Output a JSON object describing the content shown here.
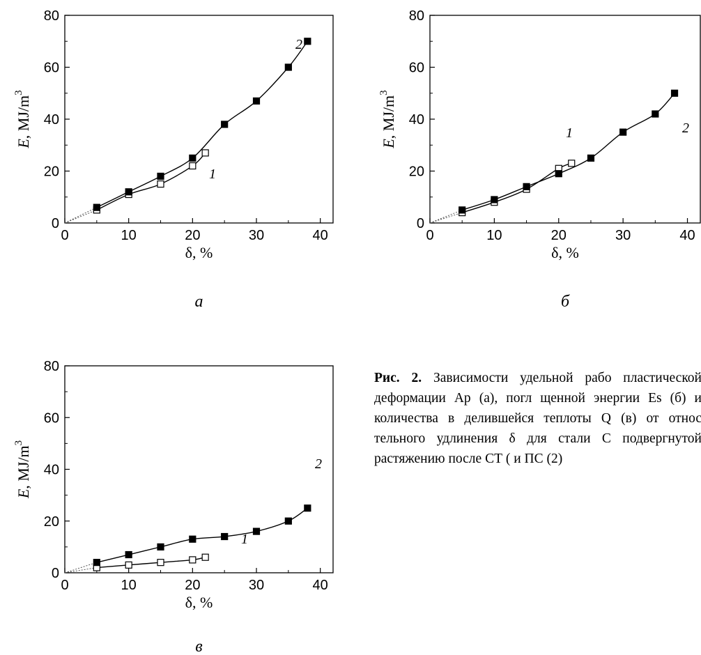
{
  "caption": {
    "label": "Рис. 2.",
    "text": "Зависимости удельной рабо пластической деформации Ap (а), погл щенной энергии Es (б) и количества в делившейся теплоты Q (в) от относ тельного удлинения δ для стали С подвергнутой растяжению после СТ ( и ПС (2)"
  },
  "chart_data": [
    {
      "type": "line",
      "panel": "a",
      "panel_label": "а",
      "xlabel": "δ, %",
      "ylabel": "E, MJ/m3",
      "xlim": [
        0,
        42
      ],
      "ylim": [
        0,
        80
      ],
      "xticks": [
        0,
        10,
        20,
        30,
        40
      ],
      "yticks": [
        0,
        20,
        40,
        60,
        80
      ],
      "series": [
        {
          "name": "1",
          "marker": "open-square",
          "x": [
            5,
            10,
            15,
            20,
            22
          ],
          "y": [
            5,
            11,
            15,
            22,
            27
          ]
        },
        {
          "name": "2",
          "marker": "filled-square",
          "x": [
            5,
            10,
            15,
            20,
            25,
            30,
            35,
            38
          ],
          "y": [
            6,
            12,
            18,
            25,
            38,
            47,
            60,
            70
          ]
        }
      ]
    },
    {
      "type": "line",
      "panel": "b",
      "panel_label": "б",
      "xlabel": "δ, %",
      "ylabel": "E, MJ/m3",
      "xlim": [
        0,
        42
      ],
      "ylim": [
        0,
        80
      ],
      "xticks": [
        0,
        10,
        20,
        30,
        40
      ],
      "yticks": [
        0,
        20,
        40,
        60,
        80
      ],
      "series": [
        {
          "name": "1",
          "marker": "open-square",
          "x": [
            5,
            10,
            15,
            20,
            22
          ],
          "y": [
            4,
            8,
            13,
            21,
            23
          ]
        },
        {
          "name": "2",
          "marker": "filled-square",
          "x": [
            5,
            10,
            15,
            20,
            25,
            30,
            35,
            38
          ],
          "y": [
            5,
            9,
            14,
            19,
            25,
            35,
            42,
            50
          ]
        }
      ]
    },
    {
      "type": "line",
      "panel": "c",
      "panel_label": "в",
      "xlabel": "δ, %",
      "ylabel": "E, MJ/m3",
      "xlim": [
        0,
        42
      ],
      "ylim": [
        0,
        80
      ],
      "xticks": [
        0,
        10,
        20,
        30,
        40
      ],
      "yticks": [
        0,
        20,
        40,
        60,
        80
      ],
      "series": [
        {
          "name": "1",
          "marker": "open-square",
          "x": [
            5,
            10,
            15,
            20,
            22
          ],
          "y": [
            2,
            3,
            4,
            5,
            6
          ]
        },
        {
          "name": "2",
          "marker": "filled-square",
          "x": [
            5,
            10,
            15,
            20,
            25,
            30,
            35,
            38
          ],
          "y": [
            4,
            7,
            10,
            13,
            14,
            16,
            20,
            25
          ]
        }
      ]
    }
  ]
}
